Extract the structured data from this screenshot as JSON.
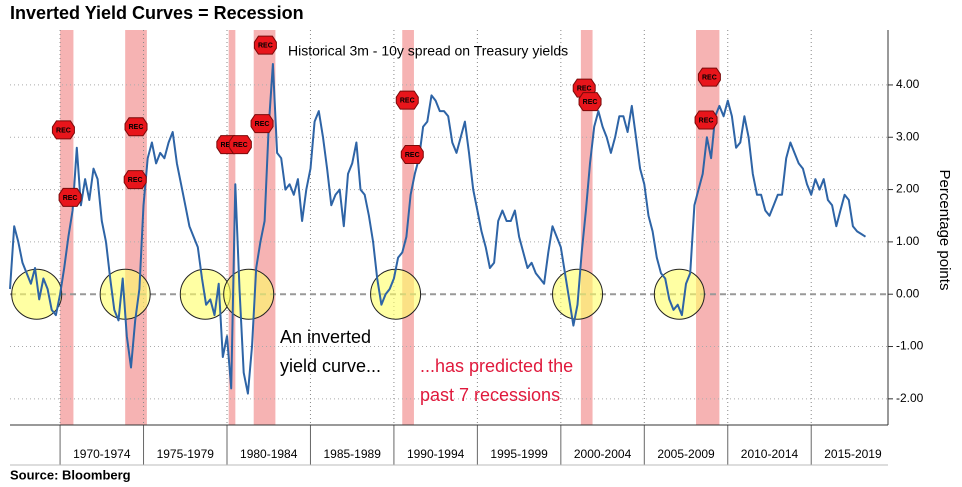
{
  "chart_data": {
    "type": "line",
    "title": "Inverted Yield Curves = Recession",
    "source": "Source: Bloomberg",
    "y_label": "Percentage points",
    "annotations": [
      "Historical 3m - 10y spread on Treasury yields",
      "An inverted",
      "yield curve...",
      "...has predicted the",
      "past 7 recessions"
    ],
    "xlim": [
      1967,
      2019.6
    ],
    "xticks": [
      {
        "value": 1970,
        "label": "1970-1974"
      },
      {
        "value": 1975,
        "label": "1975-1979"
      },
      {
        "value": 1980,
        "label": "1980-1984"
      },
      {
        "value": 1985,
        "label": "1985-1989"
      },
      {
        "value": 1990,
        "label": "1990-1994"
      },
      {
        "value": 1995,
        "label": "1995-1999"
      },
      {
        "value": 2000,
        "label": "2000-2004"
      },
      {
        "value": 2005,
        "label": "2005-2009"
      },
      {
        "value": 2010,
        "label": "2010-2014"
      },
      {
        "value": 2015,
        "label": "2015-2019"
      }
    ],
    "ylim": [
      -2.5,
      5.05
    ],
    "yticks": [
      {
        "value": -2,
        "label": "-2.00"
      },
      {
        "value": -1,
        "label": "-1.00"
      },
      {
        "value": 0,
        "label": "0.00"
      },
      {
        "value": 1,
        "label": "1.00"
      },
      {
        "value": 2,
        "label": "2.00"
      },
      {
        "value": 3,
        "label": "3.00"
      },
      {
        "value": 4,
        "label": "4.00"
      }
    ],
    "grid": true,
    "recessions": [
      {
        "start": 1970.0,
        "end": 1970.8
      },
      {
        "start": 1973.9,
        "end": 1975.2
      },
      {
        "start": 1980.1,
        "end": 1980.5
      },
      {
        "start": 1981.6,
        "end": 1982.9
      },
      {
        "start": 1990.5,
        "end": 1991.2
      },
      {
        "start": 2001.2,
        "end": 2001.9
      },
      {
        "start": 2008.1,
        "end": 2009.5
      }
    ],
    "recession_color": "#f4a6a6",
    "inversion_circles": [
      1968.6,
      1973.9,
      1978.7,
      1981.3,
      1990.1,
      2001.0,
      2007.1
    ],
    "rec_tags": [
      {
        "x": 1970.2,
        "y": 3.14,
        "label": "REC"
      },
      {
        "x": 1970.6,
        "y": 1.85,
        "label": "REC"
      },
      {
        "x": 1974.55,
        "y": 3.2,
        "label": "REC"
      },
      {
        "x": 1974.5,
        "y": 2.19,
        "label": "REC"
      },
      {
        "x": 1980.05,
        "y": 2.86,
        "label": "REC"
      },
      {
        "x": 1980.8,
        "y": 2.86,
        "label": "REC"
      },
      {
        "x": 1982.3,
        "y": 4.76,
        "label": "REC"
      },
      {
        "x": 1982.1,
        "y": 3.26,
        "label": "REC"
      },
      {
        "x": 1990.8,
        "y": 3.71,
        "label": "REC"
      },
      {
        "x": 1991.1,
        "y": 2.67,
        "label": "REC"
      },
      {
        "x": 2001.4,
        "y": 3.94,
        "label": "REC"
      },
      {
        "x": 2001.75,
        "y": 3.68,
        "label": "REC"
      },
      {
        "x": 2008.9,
        "y": 4.15,
        "label": "REC"
      },
      {
        "x": 2008.7,
        "y": 3.33,
        "label": "REC"
      }
    ],
    "series": [
      {
        "color": "#2e64a6",
        "x": [
          1967,
          1967.25,
          1967.5,
          1967.75,
          1968,
          1968.25,
          1968.5,
          1968.75,
          1969,
          1969.25,
          1969.5,
          1969.75,
          1970,
          1970.25,
          1970.5,
          1970.75,
          1971,
          1971.25,
          1971.5,
          1971.75,
          1972,
          1972.25,
          1972.5,
          1972.75,
          1973,
          1973.25,
          1973.5,
          1973.75,
          1974,
          1974.25,
          1974.5,
          1974.75,
          1975,
          1975.25,
          1975.5,
          1975.75,
          1976,
          1976.25,
          1976.5,
          1976.75,
          1977,
          1977.25,
          1977.5,
          1977.75,
          1978,
          1978.25,
          1978.5,
          1978.75,
          1979,
          1979.25,
          1979.5,
          1979.75,
          1980,
          1980.25,
          1980.5,
          1980.75,
          1981,
          1981.25,
          1981.5,
          1981.75,
          1982,
          1982.25,
          1982.5,
          1982.75,
          1983,
          1983.25,
          1983.5,
          1983.75,
          1984,
          1984.25,
          1984.5,
          1984.75,
          1985,
          1985.25,
          1985.5,
          1985.75,
          1986,
          1986.25,
          1986.5,
          1986.75,
          1987,
          1987.25,
          1987.5,
          1987.75,
          1988,
          1988.25,
          1988.5,
          1988.75,
          1989,
          1989.25,
          1989.5,
          1989.75,
          1990,
          1990.25,
          1990.5,
          1990.75,
          1991,
          1991.25,
          1991.5,
          1991.75,
          1992,
          1992.25,
          1992.5,
          1992.75,
          1993,
          1993.25,
          1993.5,
          1993.75,
          1994,
          1994.25,
          1994.5,
          1994.75,
          1995,
          1995.25,
          1995.5,
          1995.75,
          1996,
          1996.25,
          1996.5,
          1996.75,
          1997,
          1997.25,
          1997.5,
          1997.75,
          1998,
          1998.25,
          1998.5,
          1998.75,
          1999,
          1999.25,
          1999.5,
          1999.75,
          2000,
          2000.25,
          2000.5,
          2000.75,
          2001,
          2001.25,
          2001.5,
          2001.75,
          2002,
          2002.25,
          2002.5,
          2002.75,
          2003,
          2003.25,
          2003.5,
          2003.75,
          2004,
          2004.25,
          2004.5,
          2004.75,
          2005,
          2005.25,
          2005.5,
          2005.75,
          2006,
          2006.25,
          2006.5,
          2006.75,
          2007,
          2007.25,
          2007.5,
          2007.75,
          2008,
          2008.25,
          2008.5,
          2008.75,
          2009,
          2009.25,
          2009.5,
          2009.75,
          2010,
          2010.25,
          2010.5,
          2010.75,
          2011,
          2011.25,
          2011.5,
          2011.75,
          2012,
          2012.25,
          2012.5,
          2012.75,
          2013,
          2013.25,
          2013.5,
          2013.75,
          2014,
          2014.25,
          2014.5,
          2014.75,
          2015,
          2015.25,
          2015.5,
          2015.75,
          2016,
          2016.25,
          2016.5,
          2016.75,
          2017,
          2017.25,
          2017.5,
          2017.75,
          2018,
          2018.25
        ],
        "values": [
          0.1,
          1.3,
          1.0,
          0.6,
          0.4,
          0.2,
          0.5,
          -0.1,
          0.3,
          0.1,
          -0.3,
          -0.4,
          0.0,
          0.5,
          1.1,
          1.6,
          2.8,
          1.7,
          2.2,
          1.8,
          2.4,
          2.2,
          1.4,
          1.0,
          0.3,
          -0.3,
          -0.5,
          0.3,
          -0.8,
          -1.4,
          -0.5,
          0.1,
          1.7,
          2.6,
          2.9,
          2.5,
          2.7,
          2.6,
          2.9,
          3.1,
          2.5,
          2.1,
          1.7,
          1.3,
          1.1,
          0.9,
          0.3,
          -0.2,
          -0.1,
          -0.4,
          0.2,
          -1.2,
          -0.8,
          -1.8,
          2.1,
          0.1,
          -1.5,
          -1.9,
          -1.0,
          0.5,
          1.0,
          1.4,
          3.2,
          4.4,
          2.7,
          2.6,
          2.0,
          2.1,
          1.9,
          2.2,
          1.4,
          2.0,
          2.4,
          3.3,
          3.5,
          3.0,
          2.4,
          1.7,
          1.9,
          2.0,
          1.3,
          2.3,
          2.5,
          2.9,
          2.0,
          1.9,
          1.5,
          1.0,
          0.3,
          -0.2,
          0.0,
          0.1,
          0.3,
          0.7,
          0.8,
          1.1,
          1.9,
          2.3,
          2.6,
          3.2,
          3.3,
          3.8,
          3.7,
          3.5,
          3.5,
          3.4,
          2.9,
          2.7,
          3.0,
          3.3,
          2.7,
          2.0,
          1.6,
          1.2,
          0.9,
          0.5,
          0.6,
          1.4,
          1.6,
          1.4,
          1.4,
          1.6,
          1.1,
          0.8,
          0.5,
          0.6,
          0.4,
          0.3,
          0.2,
          0.8,
          1.3,
          1.1,
          0.9,
          0.4,
          -0.1,
          -0.6,
          -0.2,
          0.8,
          1.6,
          2.5,
          3.2,
          3.5,
          3.2,
          3.0,
          2.7,
          3.0,
          3.4,
          3.4,
          3.1,
          3.6,
          3.0,
          2.4,
          2.1,
          1.5,
          1.2,
          0.7,
          0.4,
          0.3,
          -0.1,
          -0.3,
          -0.2,
          -0.4,
          0.2,
          0.4,
          1.7,
          2.0,
          2.3,
          3.0,
          2.6,
          3.4,
          3.6,
          3.4,
          3.7,
          3.4,
          2.8,
          2.9,
          3.4,
          3.0,
          2.3,
          1.9,
          1.9,
          1.6,
          1.5,
          1.7,
          1.9,
          1.9,
          2.6,
          2.9,
          2.7,
          2.5,
          2.4,
          2.1,
          1.9,
          2.2,
          2.0,
          2.2,
          1.8,
          1.7,
          1.3,
          1.6,
          1.9,
          1.8,
          1.3,
          1.2,
          1.15,
          1.1
        ]
      }
    ]
  }
}
